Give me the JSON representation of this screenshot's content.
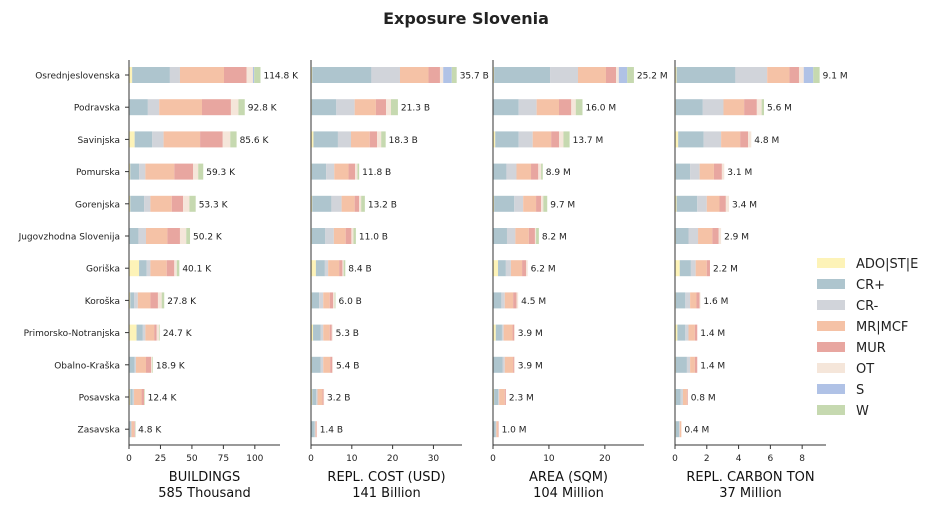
{
  "chart_data": {
    "type": "bar",
    "orientation": "horizontal",
    "stacked": true,
    "title": "Exposure Slovenia",
    "categories": [
      "Osrednjeslovenska",
      "Podravska",
      "Savinjska",
      "Pomurska",
      "Gorenjska",
      "Jugovzhodna Slovenija",
      "Goriška",
      "Koroška",
      "Primorsko-Notranjska",
      "Obalno-Kraška",
      "Posavska",
      "Zasavska"
    ],
    "legend": {
      "position": "right",
      "entries": [
        {
          "name": "ADO|ST|E",
          "color": "#fdf3b8"
        },
        {
          "name": "CR+",
          "color": "#aec5ce"
        },
        {
          "name": "CR-",
          "color": "#d1d4da"
        },
        {
          "name": "MR|MCF",
          "color": "#f5c2a6"
        },
        {
          "name": "MUR",
          "color": "#e8a6a0"
        },
        {
          "name": "OT",
          "color": "#f5e6da"
        },
        {
          "name": "S",
          "color": "#b0c2e6"
        },
        {
          "name": "W",
          "color": "#c6d9b0"
        }
      ]
    },
    "panels": [
      {
        "xlabel": "BUILDINGS",
        "total_label": "585 Thousand",
        "xlim": [
          0,
          120
        ],
        "xticks": [
          "0",
          "25",
          "50",
          "75",
          "100"
        ],
        "tick_values": [
          0,
          25,
          50,
          75,
          100
        ],
        "totals_labels": [
          "114.8 K",
          "92.8 K",
          "85.6 K",
          "59.3 K",
          "53.3 K",
          "50.2 K",
          "40.1 K",
          "27.8 K",
          "24.7 K",
          "18.9 K",
          "12.4 K",
          "4.8 K"
        ],
        "values": [
          [
            2.5,
            30,
            8,
            35,
            18,
            5,
            1,
            5
          ],
          [
            0.5,
            14.5,
            9,
            34,
            23,
            6,
            0,
            5
          ],
          [
            4.5,
            14,
            9,
            29,
            18,
            6,
            0,
            5
          ],
          [
            1,
            7,
            5,
            23,
            15,
            4,
            0,
            4
          ],
          [
            1,
            11,
            5,
            17,
            9,
            5,
            0,
            5
          ],
          [
            0.5,
            7,
            6,
            17,
            10,
            5,
            0,
            3
          ],
          [
            8,
            6,
            3,
            13,
            6,
            2,
            0,
            2
          ],
          [
            1,
            3,
            3,
            10,
            6,
            3,
            0,
            2
          ],
          [
            6,
            5,
            2,
            7,
            2,
            2,
            0,
            0.5
          ],
          [
            0.5,
            4,
            1,
            8,
            4,
            1,
            0,
            0.5
          ],
          [
            1,
            2,
            1,
            6,
            2,
            0.2,
            0,
            0.2
          ],
          [
            0.5,
            1,
            0.5,
            2,
            0.6,
            0.2,
            0,
            0.1
          ]
        ]
      },
      {
        "xlabel": "REPL. COST (USD)",
        "total_label": "141 Billion",
        "xlim": [
          0,
          37
        ],
        "xticks": [
          "0",
          "10",
          "20",
          "30"
        ],
        "tick_values": [
          0,
          10,
          20,
          30
        ],
        "totals_labels": [
          "35.7 B",
          "21.3 B",
          "18.3 B",
          "11.8 B",
          "13.2 B",
          "11.0 B",
          "8.4 B",
          "6.0 B",
          "5.3 B",
          "5.4 B",
          "3.2 B",
          "1.4 B"
        ],
        "values": [
          [
            0.3,
            14.5,
            7,
            7,
            2.8,
            0.8,
            2.1,
            1.2
          ],
          [
            0.2,
            6,
            4.5,
            5.2,
            2.5,
            1.2,
            0,
            1.7
          ],
          [
            0.6,
            6,
            3.2,
            4.6,
            1.8,
            1,
            0,
            1.1
          ],
          [
            0.2,
            3.5,
            2,
            3.5,
            1.6,
            0.6,
            0,
            0.4
          ],
          [
            0.3,
            4.7,
            2.5,
            3.2,
            1.1,
            0.5,
            0,
            0.9
          ],
          [
            0.2,
            3.3,
            2.1,
            2.9,
            1.4,
            0.5,
            0,
            0.6
          ],
          [
            1.2,
            2.2,
            0.8,
            2.7,
            0.8,
            0.3,
            0,
            0.4
          ],
          [
            0.2,
            1.8,
            1,
            1.6,
            0.8,
            0.4,
            0,
            0.2
          ],
          [
            0.5,
            1.9,
            0.6,
            1.6,
            0.5,
            0.2,
            0,
            0
          ],
          [
            0.2,
            2.2,
            0.6,
            1.7,
            0.5,
            0.2,
            0,
            0
          ],
          [
            0.3,
            1,
            0.3,
            1.2,
            0.3,
            0.1,
            0,
            0
          ],
          [
            0.1,
            0.8,
            0.2,
            0.2,
            0.1,
            0,
            0,
            0
          ]
        ]
      },
      {
        "xlabel": "AREA (SQM)",
        "total_label": "104 Million",
        "xlim": [
          0,
          27
        ],
        "xticks": [
          "0",
          "10",
          "20"
        ],
        "tick_values": [
          0,
          10,
          20
        ],
        "totals_labels": [
          "25.2 M",
          "16.0 M",
          "13.7 M",
          "8.9 M",
          "9.7 M",
          "8.2 M",
          "6.2 M",
          "4.5 M",
          "3.9 M",
          "3.9 M",
          "2.3 M",
          "1.0 M"
        ],
        "values": [
          [
            0.2,
            10,
            5,
            5,
            1.8,
            0.5,
            1.5,
            1.2
          ],
          [
            0.1,
            4.5,
            3.2,
            4,
            2.2,
            0.8,
            0,
            1.2
          ],
          [
            0.4,
            4.2,
            2.5,
            3.3,
            1.4,
            0.8,
            0,
            1.1
          ],
          [
            0.1,
            2.3,
            1.8,
            2.6,
            1.3,
            0.5,
            0,
            0.3
          ],
          [
            0.2,
            3.6,
            1.6,
            2.3,
            0.9,
            0.4,
            0,
            0.7
          ],
          [
            0.1,
            2.4,
            1.5,
            2.4,
            1.1,
            0.2,
            0,
            0.5
          ],
          [
            0.9,
            1.4,
            0.9,
            2,
            0.7,
            0.3,
            0,
            0
          ],
          [
            0.1,
            1.4,
            0.6,
            1.5,
            0.6,
            0.3,
            0,
            0
          ],
          [
            0.5,
            1.1,
            0.3,
            1.6,
            0.3,
            0.1,
            0,
            0
          ],
          [
            0.1,
            1.6,
            0.4,
            1.5,
            0.2,
            0.1,
            0,
            0
          ],
          [
            0.2,
            0.7,
            0.2,
            1,
            0.2,
            0,
            0,
            0
          ],
          [
            0.1,
            0.4,
            0.1,
            0.3,
            0.1,
            0,
            0,
            0
          ]
        ]
      },
      {
        "xlabel": "REPL. CARBON TON",
        "total_label": "37 Million",
        "xlim": [
          0,
          9.5
        ],
        "xticks": [
          "0",
          "2",
          "4",
          "6",
          "8"
        ],
        "tick_values": [
          0,
          2,
          4,
          6,
          8
        ],
        "totals_labels": [
          "9.1 M",
          "5.6 M",
          "4.8 M",
          "3.1 M",
          "3.4 M",
          "2.9 M",
          "2.2 M",
          "1.6 M",
          "1.4 M",
          "1.4 M",
          "0.8 M",
          "0.4 M"
        ],
        "values": [
          [
            0.1,
            3.7,
            2,
            1.4,
            0.6,
            0.3,
            0.6,
            0.4
          ],
          [
            0.05,
            1.7,
            1.3,
            1.3,
            0.8,
            0.3,
            0,
            0.15
          ],
          [
            0.2,
            1.6,
            1.1,
            1.2,
            0.5,
            0.2,
            0,
            0
          ],
          [
            0.05,
            0.9,
            0.6,
            0.9,
            0.5,
            0.15,
            0,
            0
          ],
          [
            0.1,
            1.3,
            0.6,
            0.8,
            0.4,
            0.2,
            0,
            0
          ],
          [
            0.05,
            0.8,
            0.6,
            0.9,
            0.4,
            0.15,
            0,
            0
          ],
          [
            0.3,
            0.7,
            0.3,
            0.7,
            0.2,
            0,
            0,
            0
          ],
          [
            0.05,
            0.6,
            0.3,
            0.4,
            0.2,
            0.05,
            0,
            0
          ],
          [
            0.15,
            0.5,
            0.2,
            0.4,
            0.15,
            0,
            0,
            0
          ],
          [
            0.05,
            0.7,
            0.2,
            0.3,
            0.15,
            0,
            0,
            0
          ],
          [
            0.05,
            0.3,
            0.15,
            0.25,
            0.05,
            0,
            0,
            0
          ],
          [
            0.05,
            0.2,
            0.05,
            0.1,
            0,
            0,
            0,
            0
          ]
        ]
      }
    ]
  }
}
